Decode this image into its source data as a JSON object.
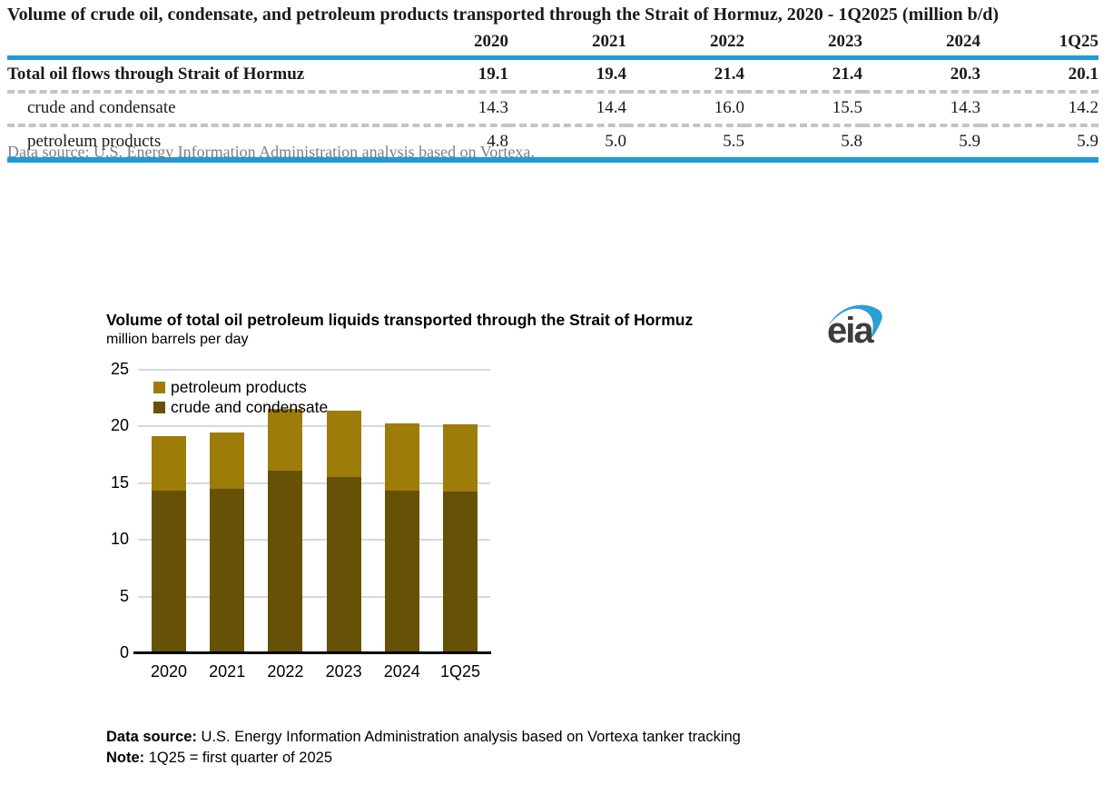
{
  "table": {
    "title": "Volume of crude oil, condensate, and petroleum products transported through the Strait of Hormuz, 2020 - 1Q2025 (million b/d)",
    "columns": [
      "2020",
      "2021",
      "2022",
      "2023",
      "2024",
      "1Q25"
    ],
    "rows": [
      {
        "label": "Total oil flows through Strait of Hormuz",
        "values": [
          "19.1",
          "19.4",
          "21.4",
          "21.4",
          "20.3",
          "20.1"
        ]
      },
      {
        "label": "crude and condensate",
        "values": [
          "14.3",
          "14.4",
          "16.0",
          "15.5",
          "14.3",
          "14.2"
        ]
      },
      {
        "label": "petroleum products",
        "values": [
          "4.8",
          "5.0",
          "5.5",
          "5.8",
          "5.9",
          "5.9"
        ]
      }
    ],
    "source": "Data source: U.S. Energy Information Administration analysis based on Vortexa."
  },
  "chart": {
    "title": "Volume of total oil petroleum liquids transported through the Strait of Hormuz",
    "subtitle": "million barrels per day",
    "logo_text": "eia",
    "footer": {
      "source_label": "Data source:",
      "source_text": " U.S. Energy Information Administration analysis based on Vortexa tanker tracking",
      "note_label": "Note:",
      "note_text": " 1Q25 = first quarter of 2025"
    }
  },
  "chart_data": {
    "type": "bar",
    "stacked": true,
    "categories": [
      "2020",
      "2021",
      "2022",
      "2023",
      "2024",
      "1Q25"
    ],
    "series": [
      {
        "name": "crude and condensate",
        "color": "#665107",
        "values": [
          14.3,
          14.4,
          16.0,
          15.5,
          14.3,
          14.2
        ]
      },
      {
        "name": "petroleum products",
        "color": "#9e7c0a",
        "values": [
          4.8,
          5.0,
          5.5,
          5.8,
          5.9,
          5.9
        ]
      }
    ],
    "legend_order": [
      "petroleum products",
      "crude and condensate"
    ],
    "legend_position": "top-left-inside",
    "title": "Volume of total oil petroleum liquids transported through the Strait of Hormuz",
    "ylabel": "million barrels per day",
    "xlabel": "",
    "ylim": [
      0,
      25
    ],
    "yticks": [
      0,
      5,
      10,
      15,
      20,
      25
    ],
    "grid": true
  },
  "colors": {
    "accent_blue": "#1f9ad6",
    "logo_swoosh": "#2e9fd6",
    "gridline": "#d9d9d9",
    "dash_gray": "#c4c4c4",
    "source_gray": "#7f7f7f"
  }
}
